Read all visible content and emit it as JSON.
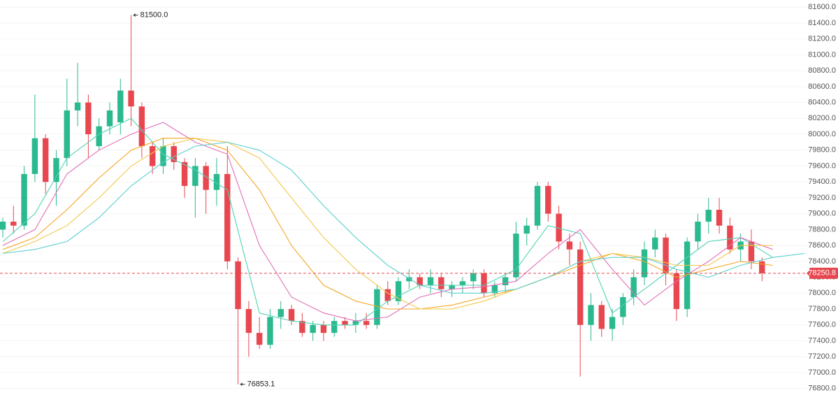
{
  "chart_data": {
    "type": "candlestick",
    "up_color": "#2bb98f",
    "down_color": "#e8474f",
    "open": [
      78800,
      78900,
      78850,
      79500,
      79950,
      79400,
      79700,
      80300,
      80400,
      79850,
      80100,
      80150,
      80550,
      80350,
      79850,
      79600,
      79850,
      79650,
      79350,
      79600,
      79300,
      79500,
      78400,
      77800,
      77500,
      77350,
      77700,
      77800,
      77650,
      77500,
      77600,
      77500,
      77650,
      77600,
      77650,
      77600,
      78050,
      77900,
      78150,
      78200,
      78100,
      78200,
      78050,
      78100,
      78150,
      78250,
      78000,
      78100,
      78200,
      78750,
      78850,
      79350,
      79000,
      78650,
      78550,
      77600,
      77850,
      77550,
      77700,
      77950,
      78200,
      78550,
      78700,
      78250,
      77800,
      78650,
      78900,
      79050,
      78850,
      78550,
      78650,
      78400
    ],
    "high": [
      78950,
      79100,
      79600,
      80500,
      80000,
      79800,
      80700,
      80900,
      80500,
      80200,
      80400,
      80700,
      81500,
      80400,
      79900,
      79950,
      79900,
      79700,
      79700,
      79650,
      79700,
      79850,
      78450,
      77900,
      77700,
      77800,
      77900,
      77850,
      77750,
      77650,
      77650,
      77700,
      77700,
      77750,
      77750,
      78100,
      78150,
      78200,
      78300,
      78250,
      78300,
      78250,
      78150,
      78200,
      78300,
      78300,
      78150,
      78250,
      78900,
      78950,
      79400,
      79400,
      79100,
      78750,
      78650,
      78000,
      77900,
      77800,
      78000,
      78300,
      78650,
      78800,
      78750,
      78300,
      78700,
      79000,
      79200,
      79200,
      78950,
      78750,
      78800,
      78450
    ],
    "low": [
      78700,
      78750,
      78800,
      79400,
      79250,
      79100,
      79600,
      80100,
      79700,
      79800,
      80000,
      80000,
      80100,
      79700,
      79500,
      79500,
      79550,
      79200,
      78950,
      79000,
      79100,
      78300,
      76853.1,
      77200,
      77300,
      77300,
      77550,
      77600,
      77450,
      77400,
      77400,
      77450,
      77550,
      77500,
      77550,
      77550,
      77850,
      77850,
      78050,
      78050,
      78000,
      77950,
      77950,
      78000,
      78050,
      77950,
      77950,
      78000,
      78150,
      78600,
      78800,
      78900,
      78550,
      78350,
      76950,
      77400,
      77450,
      77400,
      77600,
      77850,
      78100,
      78450,
      78100,
      77650,
      77700,
      78550,
      78750,
      78750,
      78500,
      78400,
      78300,
      78150
    ],
    "close": [
      78900,
      78850,
      79500,
      79950,
      79400,
      79700,
      80300,
      80400,
      80000,
      80100,
      80300,
      80550,
      80350,
      79850,
      79600,
      79850,
      79650,
      79350,
      79600,
      79300,
      79500,
      78400,
      77800,
      77500,
      77350,
      77700,
      77800,
      77650,
      77500,
      77600,
      77500,
      77650,
      77600,
      77650,
      77600,
      78050,
      77900,
      78150,
      78200,
      78100,
      78200,
      78050,
      78100,
      78150,
      78250,
      78000,
      78100,
      78200,
      78750,
      78850,
      79350,
      79000,
      78650,
      78550,
      77600,
      77850,
      77550,
      77700,
      77950,
      78200,
      78550,
      78700,
      78250,
      77800,
      78650,
      78900,
      79050,
      78850,
      78550,
      78650,
      78400,
      78250.8
    ],
    "lines": [
      {
        "color": "#4fd3b4",
        "x": [
          0,
          3,
          6,
          9,
          12,
          15,
          18,
          21,
          24,
          27,
          30,
          33,
          36,
          39,
          42,
          45,
          48,
          51,
          54,
          57,
          60,
          63,
          66,
          69,
          72
        ],
        "values": [
          78650,
          79000,
          79700,
          80000,
          80200,
          79750,
          79550,
          79300,
          77750,
          77650,
          77600,
          77600,
          77900,
          78100,
          78100,
          78100,
          78300,
          78850,
          78750,
          77750,
          78050,
          78350,
          78650,
          78700,
          78450
        ]
      },
      {
        "color": "#e070b8",
        "x": [
          0,
          3,
          6,
          9,
          12,
          15,
          18,
          21,
          24,
          27,
          30,
          33,
          36,
          39,
          42,
          45,
          48,
          51,
          54,
          57,
          60,
          63,
          66,
          69,
          72
        ],
        "values": [
          78600,
          78800,
          79500,
          79800,
          80000,
          80150,
          79900,
          79750,
          78600,
          77950,
          77750,
          77650,
          77700,
          77950,
          78050,
          78080,
          78150,
          78500,
          78800,
          78300,
          77850,
          78150,
          78400,
          78700,
          78550
        ]
      },
      {
        "color": "#f5a623",
        "x": [
          0,
          3,
          6,
          9,
          12,
          15,
          18,
          21,
          24,
          27,
          30,
          33,
          36,
          39,
          42,
          45,
          48,
          51,
          54,
          57,
          60,
          63,
          66,
          69,
          72
        ],
        "values": [
          78550,
          78700,
          79050,
          79450,
          79800,
          79950,
          79950,
          79800,
          79300,
          78600,
          78100,
          77900,
          77800,
          77800,
          77850,
          77950,
          78050,
          78200,
          78350,
          78500,
          78400,
          78200,
          78300,
          78400,
          78350
        ]
      },
      {
        "color": "#f2c84b",
        "x": [
          0,
          3,
          6,
          9,
          12,
          15,
          18,
          21,
          24,
          27,
          30,
          33,
          36,
          39,
          42,
          45,
          48,
          51,
          54,
          57,
          60,
          63,
          66,
          69,
          72
        ],
        "values": [
          78500,
          78650,
          78850,
          79200,
          79600,
          79850,
          79950,
          79900,
          79700,
          79200,
          78700,
          78300,
          78000,
          77800,
          77800,
          77900,
          78050,
          78200,
          78400,
          78500,
          78450,
          78350,
          78350,
          78600,
          78600
        ]
      },
      {
        "color": "#5ccfcf",
        "x": [
          0,
          3,
          6,
          9,
          12,
          15,
          18,
          21,
          24,
          27,
          30,
          33,
          36,
          39,
          42,
          45,
          48,
          51,
          54,
          57,
          60,
          63,
          66,
          69,
          72,
          75
        ],
        "values": [
          78500,
          78550,
          78650,
          78950,
          79350,
          79650,
          79850,
          79900,
          79800,
          79550,
          79100,
          78700,
          78350,
          78100,
          78000,
          78000,
          78050,
          78200,
          78400,
          78450,
          78450,
          78300,
          78200,
          78350,
          78450,
          78500
        ]
      }
    ],
    "annotations": [
      {
        "value": 81500,
        "label": "81500.0"
      },
      {
        "value": 76853.1,
        "label": "76853.1"
      }
    ],
    "last_price": {
      "value": 78250.8,
      "label": "78250.8",
      "color": "#e8474f"
    },
    "xlim": [
      -0.26,
      75.23
    ],
    "ylim": [
      76630,
      81690
    ],
    "grid": true,
    "yticks": [
      {
        "value": 76800,
        "label": "76800.0"
      },
      {
        "value": 77000,
        "label": "77000.0"
      },
      {
        "value": 77200,
        "label": "77200.0"
      },
      {
        "value": 77400,
        "label": "77400.0"
      },
      {
        "value": 77600,
        "label": "77600.0"
      },
      {
        "value": 77800,
        "label": "77800.0"
      },
      {
        "value": 78000,
        "label": "78000.0"
      },
      {
        "value": 78200,
        "label": "78200.0"
      },
      {
        "value": 78400,
        "label": "78400.0"
      },
      {
        "value": 78600,
        "label": "78600.0"
      },
      {
        "value": 78800,
        "label": "78800.0"
      },
      {
        "value": 79000,
        "label": "79000.0"
      },
      {
        "value": 79200,
        "label": "79200.0"
      },
      {
        "value": 79400,
        "label": "79400.0"
      },
      {
        "value": 79600,
        "label": "79600.0"
      },
      {
        "value": 79800,
        "label": "79800.0"
      },
      {
        "value": 80000,
        "label": "80000.0"
      },
      {
        "value": 80200,
        "label": "80200.0"
      },
      {
        "value": 80400,
        "label": "80400.0"
      },
      {
        "value": 80600,
        "label": "80600.0"
      },
      {
        "value": 80800,
        "label": "80800.0"
      },
      {
        "value": 81000,
        "label": "81000.0"
      },
      {
        "value": 81200,
        "label": "81200.0"
      },
      {
        "value": 81400,
        "label": "81400.0"
      },
      {
        "value": 81600,
        "label": "81600.0"
      }
    ]
  }
}
